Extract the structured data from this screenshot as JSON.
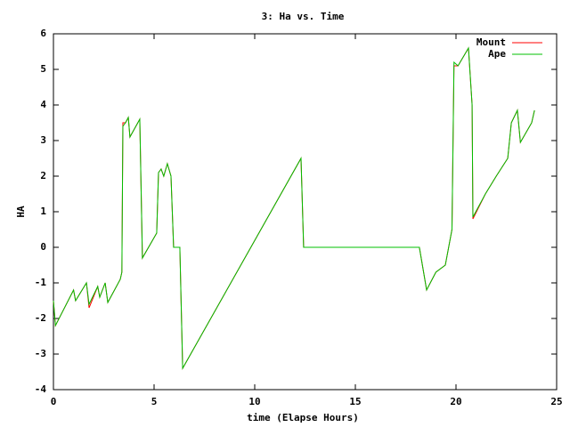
{
  "chart_data": {
    "type": "line",
    "title": "3: Ha vs. Time",
    "x_label": "time (Elapse Hours)",
    "y_label": "HA",
    "x": [
      0,
      0.1,
      1.0,
      1.1,
      1.64,
      1.77,
      2.2,
      2.3,
      2.57,
      2.7,
      3.32,
      3.4,
      3.45,
      3.58,
      3.72,
      3.8,
      4.29,
      4.42,
      5.13,
      5.22,
      5.35,
      5.48,
      5.66,
      5.84,
      5.97,
      6.28,
      6.42,
      12.3,
      12.43,
      18.18,
      18.3,
      18.54,
      19.0,
      19.47,
      19.8,
      19.9,
      20.1,
      20.62,
      20.8,
      20.84,
      21.46,
      22.0,
      22.57,
      22.75,
      23.05,
      23.2,
      23.76,
      23.9
    ],
    "series": [
      {
        "name": "Mount",
        "color": "#ff0000",
        "values": [
          -1.5,
          -2.2,
          -1.2,
          -1.5,
          -1.0,
          -1.7,
          -1.1,
          -1.4,
          -1.0,
          -1.55,
          -0.9,
          -0.7,
          3.5,
          3.5,
          3.65,
          3.1,
          3.6,
          -0.3,
          0.4,
          2.1,
          2.2,
          2.0,
          2.35,
          2.0,
          0.0,
          0.0,
          -3.4,
          2.5,
          0.0,
          0.0,
          -0.4,
          -1.2,
          -0.7,
          -0.5,
          0.5,
          5.1,
          5.1,
          5.6,
          4.0,
          0.8,
          1.5,
          2.0,
          2.5,
          3.5,
          3.85,
          2.95,
          3.5,
          3.85
        ]
      },
      {
        "name": "Ape",
        "color": "#00c000",
        "values": [
          -1.5,
          -2.2,
          -1.2,
          -1.5,
          -1.0,
          -1.6,
          -1.1,
          -1.4,
          -1.0,
          -1.55,
          -0.9,
          -0.7,
          3.4,
          3.5,
          3.65,
          3.1,
          3.6,
          -0.3,
          0.4,
          2.1,
          2.2,
          2.0,
          2.35,
          2.0,
          0.0,
          0.0,
          -3.4,
          2.5,
          0.0,
          0.0,
          -0.4,
          -1.2,
          -0.7,
          -0.5,
          0.5,
          5.2,
          5.1,
          5.6,
          4.0,
          0.85,
          1.5,
          2.0,
          2.5,
          3.5,
          3.85,
          2.95,
          3.5,
          3.85
        ]
      }
    ],
    "xlim": [
      0,
      25
    ],
    "xticks": [
      0,
      5,
      10,
      15,
      20,
      25
    ],
    "ylim": [
      -4,
      6
    ],
    "yticks": [
      -4,
      -3,
      -2,
      -1,
      0,
      1,
      2,
      3,
      4,
      5,
      6
    ],
    "legend": "top-right"
  }
}
